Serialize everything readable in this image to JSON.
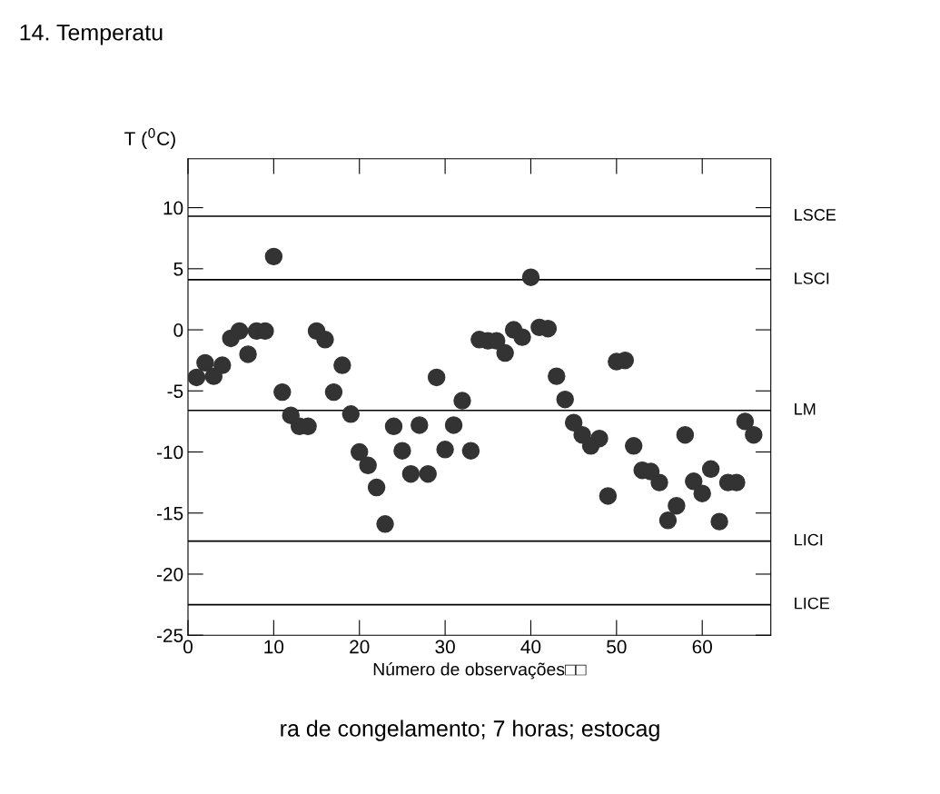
{
  "chart_data": {
    "type": "scatter",
    "title": "14. Temperatu",
    "xlabel": "Número de observações□□",
    "ylabel": "T ($^{0}$C)",
    "annotations": [
      "ra de congelamento; 7 horas; estocag"
    ],
    "x": [
      1,
      2,
      3,
      4,
      5,
      6,
      7,
      8,
      9,
      10,
      11,
      12,
      13,
      14,
      15,
      16,
      17,
      18,
      19,
      20,
      21,
      22,
      23,
      24,
      25,
      26,
      27,
      28,
      29,
      30,
      31,
      32,
      33,
      34,
      35,
      36,
      37,
      38,
      39,
      40,
      41,
      42,
      43,
      44,
      45,
      46,
      47,
      48,
      49,
      50,
      51,
      52,
      53,
      54,
      55,
      56,
      57,
      58,
      59,
      60,
      61,
      62,
      63,
      64,
      65,
      66
    ],
    "series": [
      {
        "color": "#333333",
        "values": [
          -3.9,
          -2.7,
          -3.8,
          -2.9,
          -0.7,
          -0.1,
          -2.0,
          -0.1,
          -0.1,
          6.0,
          -5.1,
          -7.0,
          -7.9,
          -7.9,
          -0.1,
          -0.8,
          -5.1,
          -2.9,
          -6.9,
          -10.0,
          -11.1,
          -12.9,
          -15.9,
          -7.9,
          -9.9,
          -11.8,
          -7.8,
          -11.8,
          -3.9,
          -9.8,
          -7.8,
          -5.8,
          -9.9,
          -0.8,
          -0.9,
          -0.9,
          -1.9,
          0.0,
          -0.6,
          4.3,
          0.2,
          0.1,
          -3.8,
          -5.7,
          -7.6,
          -8.6,
          -9.5,
          -8.9,
          -13.6,
          -2.6,
          -2.5,
          -9.5,
          -11.5,
          -11.6,
          -12.5,
          -15.6,
          -14.4,
          -8.6,
          -12.4,
          -13.4,
          -11.4,
          -15.7,
          -12.5,
          -12.5,
          -7.5,
          -8.6
        ]
      }
    ],
    "marker": "circle",
    "xlim": [
      0,
      68
    ],
    "ylim": [
      -25,
      14
    ],
    "xticks": [
      0,
      10,
      20,
      30,
      40,
      50,
      60
    ],
    "yticks": [
      -25,
      -20,
      -15,
      -10,
      -5,
      0,
      5,
      10
    ],
    "ref_lines": [
      {
        "axis": "y",
        "value": 9.3,
        "label": "LSCE",
        "color": "#000000",
        "line_style": "solid"
      },
      {
        "axis": "y",
        "value": 4.1,
        "label": "LSCI",
        "color": "#000000",
        "line_style": "solid"
      },
      {
        "axis": "y",
        "value": -6.6,
        "label": "LM",
        "color": "#000000",
        "line_style": "solid"
      },
      {
        "axis": "y",
        "value": -17.3,
        "label": "LICI",
        "color": "#000000",
        "line_style": "solid"
      },
      {
        "axis": "y",
        "value": -22.5,
        "label": "LICE",
        "color": "#000000",
        "line_style": "solid"
      }
    ],
    "grid": false,
    "legend": false
  }
}
